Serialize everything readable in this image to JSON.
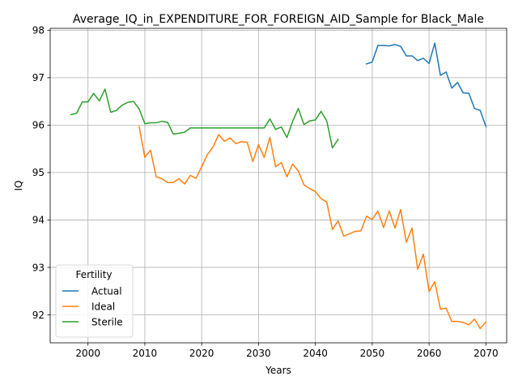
{
  "chart_data": {
    "type": "line",
    "title": "Average_IQ_in_EXPENDITURE_FOR_FOREIGN_AID_Sample for Black_Male",
    "xlabel": "Years",
    "ylabel": "IQ",
    "xlim": [
      1993.35,
      2073.65
    ],
    "ylim": [
      91.41,
      98.04
    ],
    "xticks": [
      2000,
      2010,
      2020,
      2030,
      2040,
      2050,
      2060,
      2070
    ],
    "yticks": [
      92,
      93,
      94,
      95,
      96,
      97,
      98
    ],
    "grid": true,
    "legend": {
      "title": "Fertility",
      "placement": "lower left"
    },
    "series": [
      {
        "name": "Actual",
        "color": "#1f77b4",
        "x": [
          2049,
          2050,
          2051,
          2052,
          2053,
          2054,
          2055,
          2056,
          2057,
          2058,
          2059,
          2060,
          2061,
          2062,
          2063,
          2064,
          2065,
          2066,
          2067,
          2068,
          2069,
          2070
        ],
        "y": [
          97.29,
          97.33,
          97.68,
          97.68,
          97.67,
          97.7,
          97.66,
          97.46,
          97.46,
          97.36,
          97.41,
          97.3,
          97.73,
          97.05,
          97.12,
          96.78,
          96.9,
          96.68,
          96.67,
          96.35,
          96.31,
          95.97
        ]
      },
      {
        "name": "Ideal",
        "color": "#ff7f0e",
        "x": [
          2009,
          2010,
          2011,
          2012,
          2013,
          2014,
          2015,
          2016,
          2017,
          2018,
          2019,
          2020,
          2021,
          2022,
          2023,
          2024,
          2025,
          2026,
          2027,
          2028,
          2029,
          2030,
          2031,
          2032,
          2033,
          2034,
          2035,
          2036,
          2037,
          2038,
          2039,
          2040,
          2041,
          2042,
          2043,
          2044,
          2045,
          2046,
          2047,
          2048,
          2049,
          2050,
          2051,
          2052,
          2053,
          2054,
          2055,
          2056,
          2057,
          2058,
          2059,
          2060,
          2061,
          2062,
          2063,
          2064,
          2065,
          2066,
          2067,
          2068,
          2069,
          2070
        ],
        "y": [
          95.97,
          95.32,
          95.47,
          94.91,
          94.87,
          94.79,
          94.79,
          94.87,
          94.76,
          94.94,
          94.88,
          95.12,
          95.38,
          95.54,
          95.8,
          95.66,
          95.73,
          95.61,
          95.65,
          95.64,
          95.23,
          95.59,
          95.32,
          95.74,
          95.12,
          95.21,
          94.91,
          95.18,
          95.03,
          94.74,
          94.66,
          94.6,
          94.45,
          94.38,
          93.8,
          93.98,
          93.66,
          93.71,
          93.76,
          93.77,
          94.08,
          94.01,
          94.19,
          93.84,
          94.19,
          93.83,
          94.22,
          93.53,
          93.83,
          92.96,
          93.28,
          92.49,
          92.7,
          92.12,
          92.14,
          91.86,
          91.86,
          91.84,
          91.79,
          91.91,
          91.71,
          91.85
        ]
      },
      {
        "name": "Sterile",
        "color": "#2ca02c",
        "x": [
          1997,
          1998,
          1999,
          2000,
          2001,
          2002,
          2003,
          2004,
          2005,
          2006,
          2007,
          2008,
          2009,
          2010,
          2011,
          2012,
          2013,
          2014,
          2015,
          2016,
          2017,
          2018,
          2019,
          2020,
          2021,
          2022,
          2023,
          2024,
          2025,
          2026,
          2027,
          2028,
          2029,
          2030,
          2031,
          2032,
          2033,
          2034,
          2035,
          2036,
          2037,
          2038,
          2039,
          2040,
          2041,
          2042,
          2043,
          2044
        ],
        "y": [
          96.22,
          96.25,
          96.49,
          96.49,
          96.67,
          96.51,
          96.76,
          96.27,
          96.31,
          96.42,
          96.48,
          96.5,
          96.34,
          96.03,
          96.05,
          96.05,
          96.08,
          96.06,
          95.81,
          95.83,
          95.85,
          95.94,
          95.94,
          95.94,
          95.94,
          95.94,
          95.94,
          95.94,
          95.94,
          95.94,
          95.94,
          95.94,
          95.94,
          95.94,
          95.94,
          96.13,
          95.91,
          95.96,
          95.74,
          96.08,
          96.35,
          96.01,
          96.09,
          96.11,
          96.29,
          96.09,
          95.52,
          95.7
        ]
      }
    ]
  }
}
